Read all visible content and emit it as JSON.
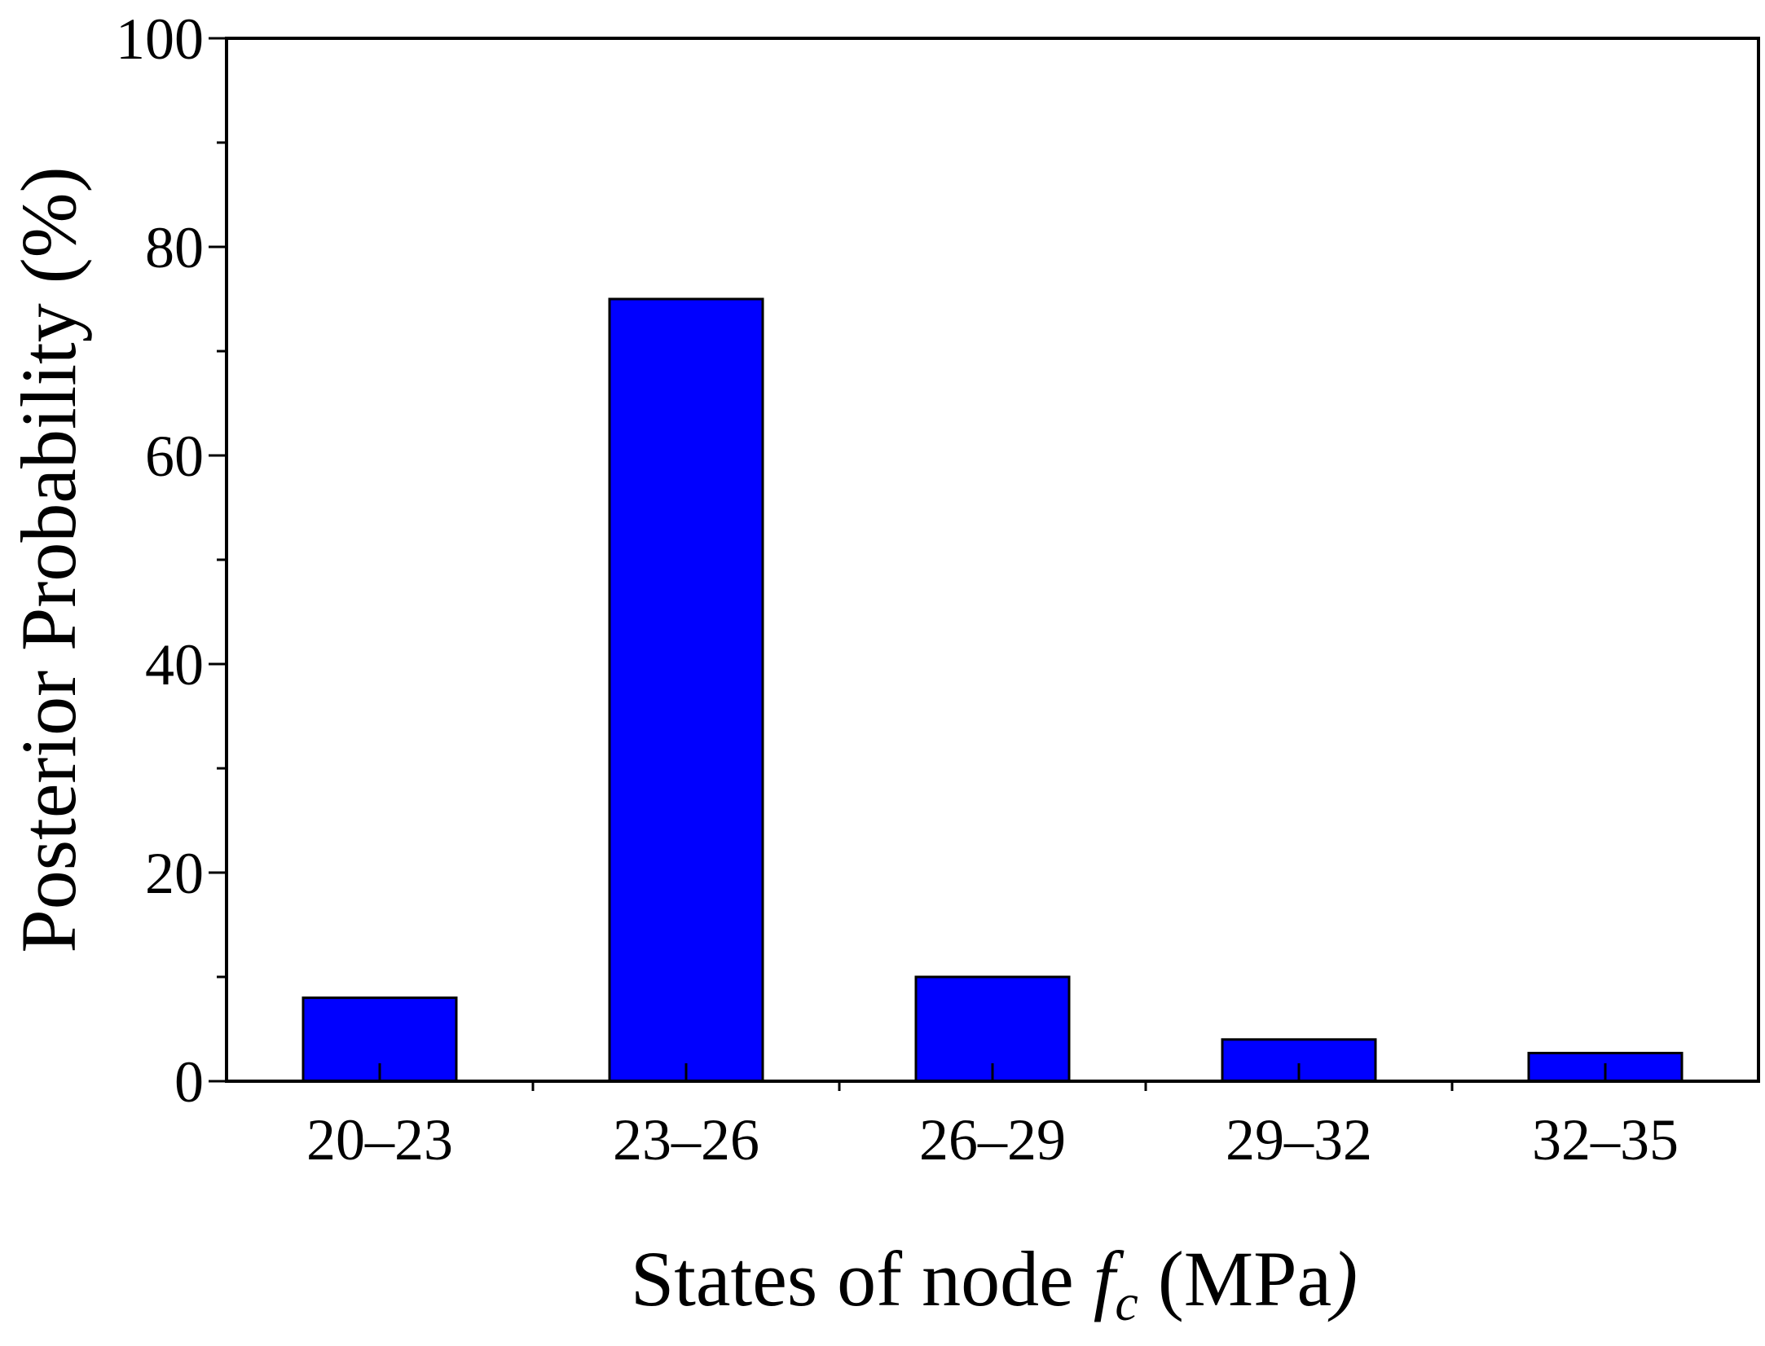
{
  "chart_data": {
    "type": "bar",
    "categories": [
      "20–23",
      "23–26",
      "26–29",
      "29–32",
      "32–35"
    ],
    "values": [
      8,
      75,
      10,
      4,
      2.7
    ],
    "title": "",
    "xlabel": {
      "prefix": "States of node ",
      "var": "f",
      "sub": "c",
      "suffix": " (MPa",
      "close": ")"
    },
    "ylabel": "Posterior Probability (%)",
    "ylim": [
      0,
      100
    ],
    "yticks": [
      0,
      20,
      40,
      60,
      80,
      100
    ],
    "yticks_labels": [
      "0",
      "20",
      "40",
      "60",
      "80",
      "100"
    ],
    "y_minor_ticks": [
      10,
      30,
      50,
      70,
      90
    ],
    "grid": false,
    "legend": "none",
    "bar_color": "#0000ff",
    "bar_edge_color": "#000000"
  }
}
